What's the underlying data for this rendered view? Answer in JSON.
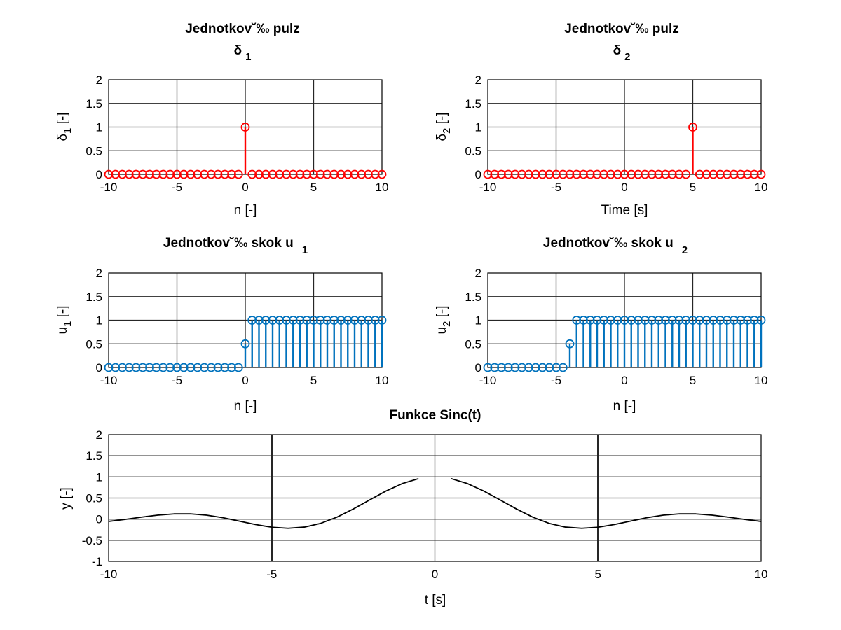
{
  "chart_data": [
    {
      "type": "stem",
      "title": "Jednotkov˘‰ pulz",
      "title_line2": {
        "base": "δ",
        "sub": "1"
      },
      "xlabel": "n [-]",
      "ylabel": {
        "base": "δ",
        "sub": "1",
        "rest": " [-]"
      },
      "xlim": [
        -10,
        10
      ],
      "ylim": [
        0,
        2
      ],
      "xticks": [
        -10,
        -5,
        0,
        5,
        10
      ],
      "yticks": [
        0,
        0.5,
        1,
        1.5,
        2
      ],
      "ytick_labels": [
        "0",
        "0.5",
        "1",
        "1.5",
        "2"
      ],
      "grid": true,
      "color": "#ff0000",
      "series": [
        {
          "x": [
            -10,
            -9.5,
            -9,
            -8.5,
            -8,
            -7.5,
            -7,
            -6.5,
            -6,
            -5.5,
            -5,
            -4.5,
            -4,
            -3.5,
            -3,
            -2.5,
            -2,
            -1.5,
            -1,
            -0.5,
            0,
            0.5,
            1,
            1.5,
            2,
            2.5,
            3,
            3.5,
            4,
            4.5,
            5,
            5.5,
            6,
            6.5,
            7,
            7.5,
            8,
            8.5,
            9,
            9.5,
            10
          ],
          "y": [
            0,
            0,
            0,
            0,
            0,
            0,
            0,
            0,
            0,
            0,
            0,
            0,
            0,
            0,
            0,
            0,
            0,
            0,
            0,
            0,
            1,
            0,
            0,
            0,
            0,
            0,
            0,
            0,
            0,
            0,
            0,
            0,
            0,
            0,
            0,
            0,
            0,
            0,
            0,
            0,
            0
          ]
        }
      ]
    },
    {
      "type": "stem",
      "title": "Jednotkov˘‰ pulz",
      "title_line2": {
        "base": "δ",
        "sub": "2"
      },
      "xlabel": "Time [s]",
      "ylabel": {
        "base": "δ",
        "sub": "2",
        "rest": " [-]"
      },
      "xlim": [
        -10,
        10
      ],
      "ylim": [
        0,
        2
      ],
      "xticks": [
        -10,
        -5,
        0,
        5,
        10
      ],
      "yticks": [
        0,
        0.5,
        1,
        1.5,
        2
      ],
      "ytick_labels": [
        "0",
        "0.5",
        "1",
        "1.5",
        "2"
      ],
      "grid": true,
      "color": "#ff0000",
      "series": [
        {
          "x": [
            -10,
            -9.5,
            -9,
            -8.5,
            -8,
            -7.5,
            -7,
            -6.5,
            -6,
            -5.5,
            -5,
            -4.5,
            -4,
            -3.5,
            -3,
            -2.5,
            -2,
            -1.5,
            -1,
            -0.5,
            0,
            0.5,
            1,
            1.5,
            2,
            2.5,
            3,
            3.5,
            4,
            4.5,
            5,
            5.5,
            6,
            6.5,
            7,
            7.5,
            8,
            8.5,
            9,
            9.5,
            10
          ],
          "y": [
            0,
            0,
            0,
            0,
            0,
            0,
            0,
            0,
            0,
            0,
            0,
            0,
            0,
            0,
            0,
            0,
            0,
            0,
            0,
            0,
            0,
            0,
            0,
            0,
            0,
            0,
            0,
            0,
            0,
            0,
            1,
            0,
            0,
            0,
            0,
            0,
            0,
            0,
            0,
            0,
            0
          ]
        }
      ]
    },
    {
      "type": "stem",
      "title": "Jednotkov˘‰ skok u",
      "title_sub": "1",
      "xlabel": "n [-]",
      "ylabel": {
        "base": "u",
        "sub": "1",
        "rest": " [-]"
      },
      "xlim": [
        -10,
        10
      ],
      "ylim": [
        0,
        2
      ],
      "xticks": [
        -10,
        -5,
        0,
        5,
        10
      ],
      "yticks": [
        0,
        0.5,
        1,
        1.5,
        2
      ],
      "ytick_labels": [
        "0",
        "0.5",
        "1",
        "1.5",
        "2"
      ],
      "grid": true,
      "color": "#0072bd",
      "series": [
        {
          "x": [
            -10,
            -9.5,
            -9,
            -8.5,
            -8,
            -7.5,
            -7,
            -6.5,
            -6,
            -5.5,
            -5,
            -4.5,
            -4,
            -3.5,
            -3,
            -2.5,
            -2,
            -1.5,
            -1,
            -0.5,
            0,
            0.5,
            1,
            1.5,
            2,
            2.5,
            3,
            3.5,
            4,
            4.5,
            5,
            5.5,
            6,
            6.5,
            7,
            7.5,
            8,
            8.5,
            9,
            9.5,
            10
          ],
          "y": [
            0,
            0,
            0,
            0,
            0,
            0,
            0,
            0,
            0,
            0,
            0,
            0,
            0,
            0,
            0,
            0,
            0,
            0,
            0,
            0,
            0.5,
            1,
            1,
            1,
            1,
            1,
            1,
            1,
            1,
            1,
            1,
            1,
            1,
            1,
            1,
            1,
            1,
            1,
            1,
            1,
            1
          ]
        }
      ]
    },
    {
      "type": "stem",
      "title": "Jednotkov˘‰ skok u",
      "title_sub": "2",
      "xlabel": "n [-]",
      "ylabel": {
        "base": "u",
        "sub": "2",
        "rest": " [-]"
      },
      "xlim": [
        -10,
        10
      ],
      "ylim": [
        0,
        2
      ],
      "xticks": [
        -10,
        -5,
        0,
        5,
        10
      ],
      "yticks": [
        0,
        0.5,
        1,
        1.5,
        2
      ],
      "ytick_labels": [
        "0",
        "0.5",
        "1",
        "1.5",
        "2"
      ],
      "grid": true,
      "color": "#0072bd",
      "series": [
        {
          "x": [
            -10,
            -9.5,
            -9,
            -8.5,
            -8,
            -7.5,
            -7,
            -6.5,
            -6,
            -5.5,
            -5,
            -4.5,
            -4,
            -3.5,
            -3,
            -2.5,
            -2,
            -1.5,
            -1,
            -0.5,
            0,
            0.5,
            1,
            1.5,
            2,
            2.5,
            3,
            3.5,
            4,
            4.5,
            5,
            5.5,
            6,
            6.5,
            7,
            7.5,
            8,
            8.5,
            9,
            9.5,
            10
          ],
          "y": [
            0,
            0,
            0,
            0,
            0,
            0,
            0,
            0,
            0,
            0,
            0,
            0,
            0.5,
            1,
            1,
            1,
            1,
            1,
            1,
            1,
            1,
            1,
            1,
            1,
            1,
            1,
            1,
            1,
            1,
            1,
            1,
            1,
            1,
            1,
            1,
            1,
            1,
            1,
            1,
            1,
            1
          ]
        }
      ]
    },
    {
      "type": "line",
      "title": "Funkce Sinc(t)",
      "xlabel": "t [s]",
      "ylabel": "y [-]",
      "xlim": [
        -10,
        10
      ],
      "ylim": [
        -1,
        2
      ],
      "xticks": [
        -10,
        -5,
        0,
        5,
        10
      ],
      "yticks": [
        -1,
        -0.5,
        0,
        0.5,
        1,
        1.5,
        2
      ],
      "ytick_labels": [
        "-1",
        "-0.5",
        "0",
        "0.5",
        "1",
        "1.5",
        "2"
      ],
      "grid": true,
      "grid_emphasis_x": [
        -5,
        5
      ],
      "color": "#000000",
      "function": "sin(t)/t",
      "series": [
        {
          "x_start": -10,
          "x_end": -0.5,
          "x_step": 0.5
        },
        {
          "x_start": 0.5,
          "x_end": 10,
          "x_step": 0.5
        }
      ]
    }
  ]
}
